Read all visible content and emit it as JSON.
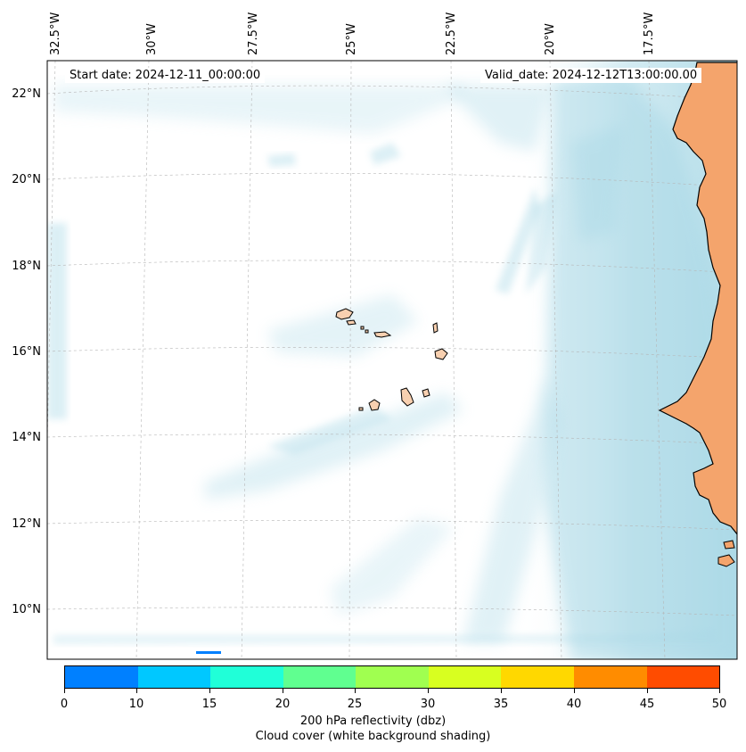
{
  "map": {
    "start_label": "Start date: 2024-12-11_00:00:00",
    "valid_label": "Valid_date: 2024-12-12T13:00:00.00",
    "longitude_labels": [
      "32.5°W",
      "30°W",
      "27.5°W",
      "25°W",
      "22.5°W",
      "20°W",
      "17.5°W"
    ],
    "latitude_labels": [
      "22°N",
      "20°N",
      "18°N",
      "16°N",
      "14°N",
      "12°N",
      "10°N"
    ],
    "land_color": "#f4a46c",
    "cloud_color": "#a8d8e6"
  },
  "colorbar": {
    "ticks": [
      "0",
      "10",
      "15",
      "20",
      "25",
      "30",
      "35",
      "40",
      "45",
      "50"
    ],
    "colors": [
      "#0080ff",
      "#00c8ff",
      "#20ffd8",
      "#60ff90",
      "#a0ff50",
      "#d8ff20",
      "#ffd800",
      "#ff8c00",
      "#ff4c00"
    ],
    "label_line1": "200 hPa reflectivity (dbz)",
    "label_line2": "Cloud cover (white background shading)"
  }
}
